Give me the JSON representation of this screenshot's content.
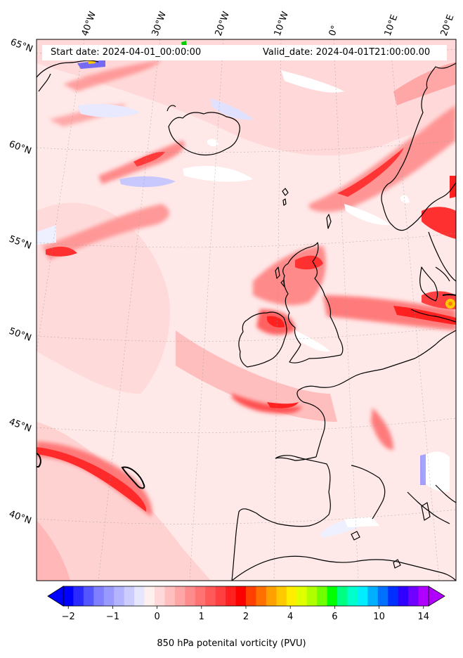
{
  "header": {
    "start_label": "Start date: 2024-04-01_00:00:00",
    "valid_label": "Valid_date: 2024-04-01T21:00:00.00"
  },
  "map": {
    "longitude_labels": [
      "40°W",
      "30°W",
      "20°W",
      "10°W",
      "0°",
      "10°E",
      "20°E"
    ],
    "latitude_labels": [
      "65°N",
      "60°N",
      "55°N",
      "50°N",
      "45°N",
      "40°N"
    ],
    "field": "850 hPa potential vorticity",
    "coastline_color": "#000000"
  },
  "colorbar": {
    "label": "850 hPa potenital vorticity (PVU)",
    "ticks": [
      "−2",
      "−1",
      "0",
      "1",
      "2",
      "4",
      "6",
      "10",
      "14"
    ],
    "colors": [
      "#0000ff",
      "#2a2aff",
      "#5555ff",
      "#7f7fff",
      "#9999ff",
      "#b3b3ff",
      "#ccccff",
      "#e6e6ff",
      "#fff0f0",
      "#ffd9d9",
      "#ffbfbf",
      "#ffa6a6",
      "#ff8c8c",
      "#ff7373",
      "#ff5959",
      "#ff4040",
      "#ff2020",
      "#ff0000",
      "#ff4000",
      "#ff7000",
      "#ffa000",
      "#ffc800",
      "#ffee00",
      "#e0ff00",
      "#b0ff00",
      "#70ff00",
      "#00ff00",
      "#00ff80",
      "#00ffcc",
      "#00eeff",
      "#00b0ff",
      "#0070ff",
      "#0030ff",
      "#3000ff",
      "#7000ff",
      "#b000ff"
    ],
    "under_color": "#0000ff",
    "over_color": "#b000ff"
  }
}
